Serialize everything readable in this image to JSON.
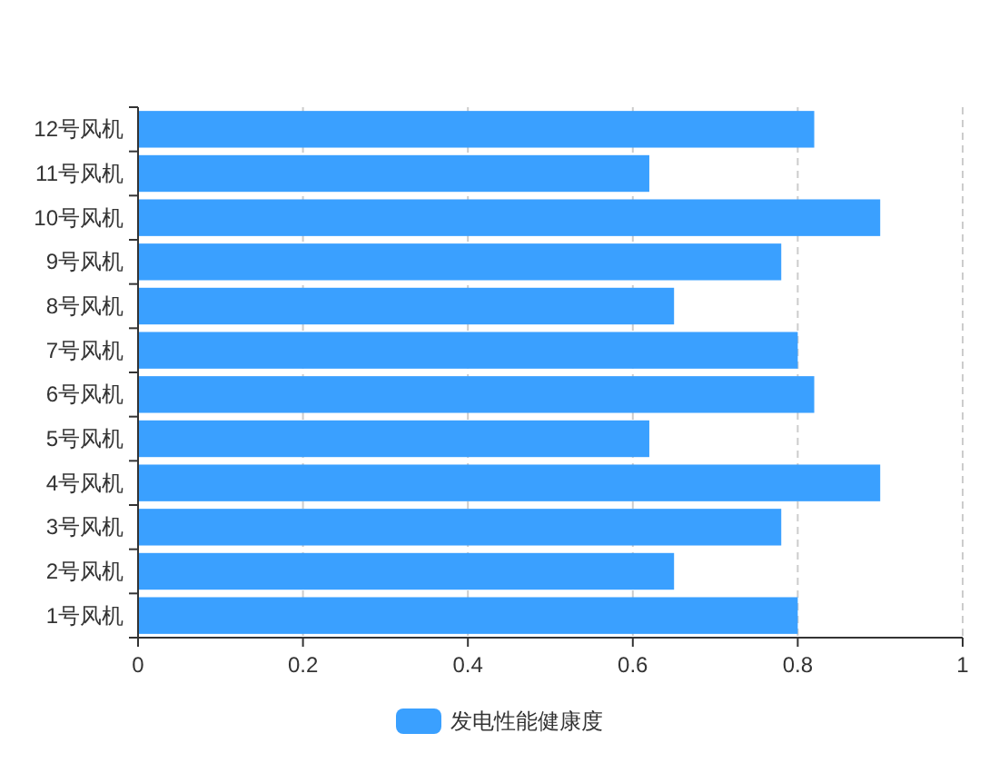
{
  "chart_data": {
    "type": "bar",
    "orientation": "horizontal",
    "categories": [
      "12号风机",
      "11号风机",
      "10号风机",
      "9号风机",
      "8号风机",
      "7号风机",
      "6号风机",
      "5号风机",
      "4号风机",
      "3号风机",
      "2号风机",
      "1号风机"
    ],
    "series": [
      {
        "name": "发电性能健康度",
        "color": "#3aa0ff",
        "values": [
          0.82,
          0.62,
          0.9,
          0.78,
          0.65,
          0.8,
          0.82,
          0.62,
          0.9,
          0.78,
          0.65,
          0.8
        ]
      }
    ],
    "xlim": [
      0,
      1
    ],
    "xticks": [
      0,
      0.2,
      0.4,
      0.6,
      0.8,
      1
    ],
    "grid": "x",
    "legend": "bottom"
  }
}
